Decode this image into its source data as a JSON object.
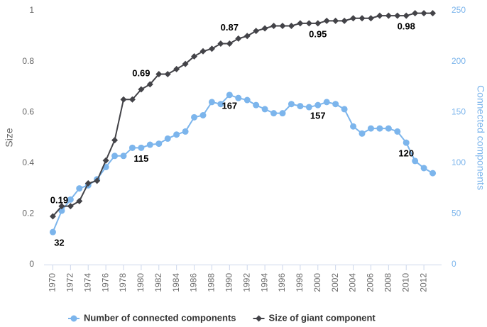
{
  "chart_data": {
    "type": "line",
    "x": [
      1970,
      1971,
      1972,
      1973,
      1974,
      1975,
      1976,
      1977,
      1978,
      1979,
      1980,
      1981,
      1982,
      1983,
      1984,
      1985,
      1986,
      1987,
      1988,
      1989,
      1990,
      1991,
      1992,
      1993,
      1994,
      1995,
      1996,
      1997,
      1998,
      1999,
      2000,
      2001,
      2002,
      2003,
      2004,
      2005,
      2006,
      2007,
      2008,
      2009,
      2010,
      2011,
      2012,
      2013
    ],
    "xlim": [
      1969,
      2014
    ],
    "xticks": [
      1970,
      1972,
      1974,
      1976,
      1978,
      1980,
      1982,
      1984,
      1986,
      1988,
      1990,
      1992,
      1994,
      1996,
      1998,
      2000,
      2002,
      2004,
      2006,
      2008,
      2010,
      2012
    ],
    "ylim": [
      0,
      1
    ],
    "yticks": [
      0,
      0.2,
      0.4,
      0.6,
      0.8,
      1
    ],
    "y_label": "Size",
    "y2lim": [
      0,
      250
    ],
    "y2ticks": [
      0,
      50,
      100,
      150,
      200,
      250
    ],
    "y2_label": "Connected components",
    "series": [
      {
        "name": "Number of connected components",
        "color": "#7cb5ec",
        "axis": "y2",
        "marker": "circle",
        "values": [
          32,
          53,
          64,
          75,
          78,
          84,
          96,
          107,
          107,
          115,
          115,
          118,
          119,
          124,
          128,
          131,
          145,
          147,
          160,
          158,
          167,
          164,
          162,
          157,
          153,
          149,
          149,
          158,
          156,
          155,
          157,
          160,
          158,
          153,
          136,
          129,
          134,
          134,
          134,
          131,
          120,
          102,
          95,
          90
        ],
        "value_labels": [
          "32",
          null,
          null,
          null,
          null,
          null,
          null,
          null,
          null,
          null,
          "115",
          null,
          null,
          null,
          null,
          null,
          null,
          null,
          null,
          null,
          "167",
          null,
          null,
          null,
          null,
          null,
          null,
          null,
          null,
          null,
          "157",
          null,
          null,
          null,
          null,
          null,
          null,
          null,
          null,
          null,
          "120",
          null,
          null,
          null
        ]
      },
      {
        "name": "Size of giant component",
        "color": "#434348",
        "axis": "y",
        "marker": "diamond",
        "values": [
          0.19,
          0.23,
          0.23,
          0.25,
          0.32,
          0.33,
          0.41,
          0.49,
          0.65,
          0.65,
          0.69,
          0.71,
          0.75,
          0.75,
          0.77,
          0.79,
          0.82,
          0.84,
          0.85,
          0.87,
          0.87,
          0.89,
          0.9,
          0.92,
          0.93,
          0.94,
          0.94,
          0.94,
          0.95,
          0.95,
          0.95,
          0.96,
          0.96,
          0.96,
          0.97,
          0.97,
          0.97,
          0.98,
          0.98,
          0.98,
          0.98,
          0.99,
          0.99,
          0.99
        ],
        "value_labels": [
          "0.19",
          null,
          null,
          null,
          null,
          null,
          null,
          null,
          null,
          null,
          "0.69",
          null,
          null,
          null,
          null,
          null,
          null,
          null,
          null,
          null,
          "0.87",
          null,
          null,
          null,
          null,
          null,
          null,
          null,
          null,
          null,
          "0.95",
          null,
          null,
          null,
          null,
          null,
          null,
          null,
          null,
          null,
          "0.98",
          null,
          null,
          null
        ]
      }
    ]
  }
}
